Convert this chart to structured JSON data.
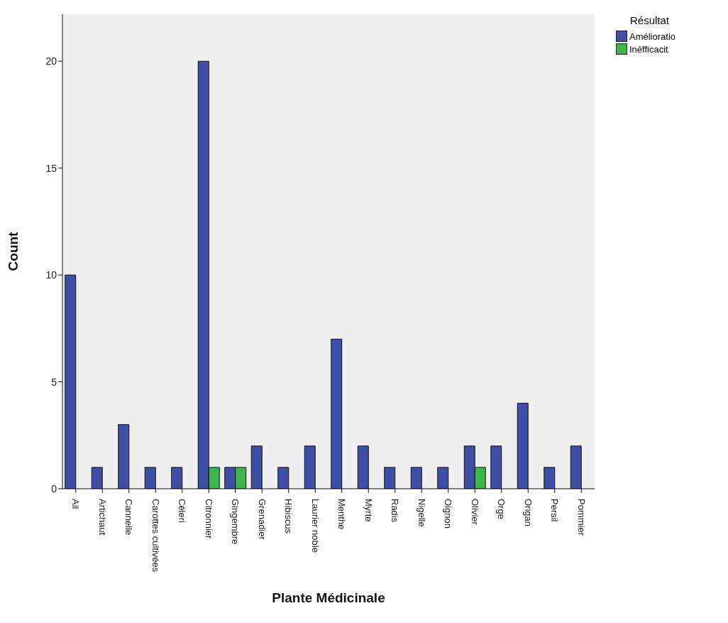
{
  "chart_data": {
    "type": "bar",
    "xlabel": "Plante Médicinale",
    "ylabel": "Count",
    "legend_title": "Résultat",
    "categories": [
      "Ail",
      "Artichaut",
      "Cannelle",
      "Carottes cultivées",
      "Céleri",
      "Citronnier",
      "Gingembre",
      "Grenadier",
      "Hibiscus",
      "Laurier noble",
      "Menthe",
      "Myrte",
      "Radis",
      "Nigelle",
      "Oignon",
      "Olivier",
      "Orge",
      "Origan",
      "Persil",
      "Pommier"
    ],
    "series": [
      {
        "name": "Amélioratio",
        "color": "#3f4fa6",
        "values": [
          10,
          1,
          3,
          1,
          1,
          20,
          1,
          2,
          1,
          2,
          7,
          2,
          1,
          1,
          1,
          2,
          2,
          4,
          1,
          2
        ]
      },
      {
        "name": "Inéfficacit",
        "color": "#3cb64a",
        "values": [
          null,
          null,
          null,
          null,
          null,
          1,
          1,
          null,
          null,
          null,
          null,
          null,
          null,
          null,
          null,
          1,
          null,
          null,
          null,
          null
        ]
      }
    ],
    "ylim": [
      0,
      22.2
    ],
    "yticks": [
      0,
      5,
      10,
      15,
      20
    ],
    "grid": false,
    "legend": "top right"
  }
}
